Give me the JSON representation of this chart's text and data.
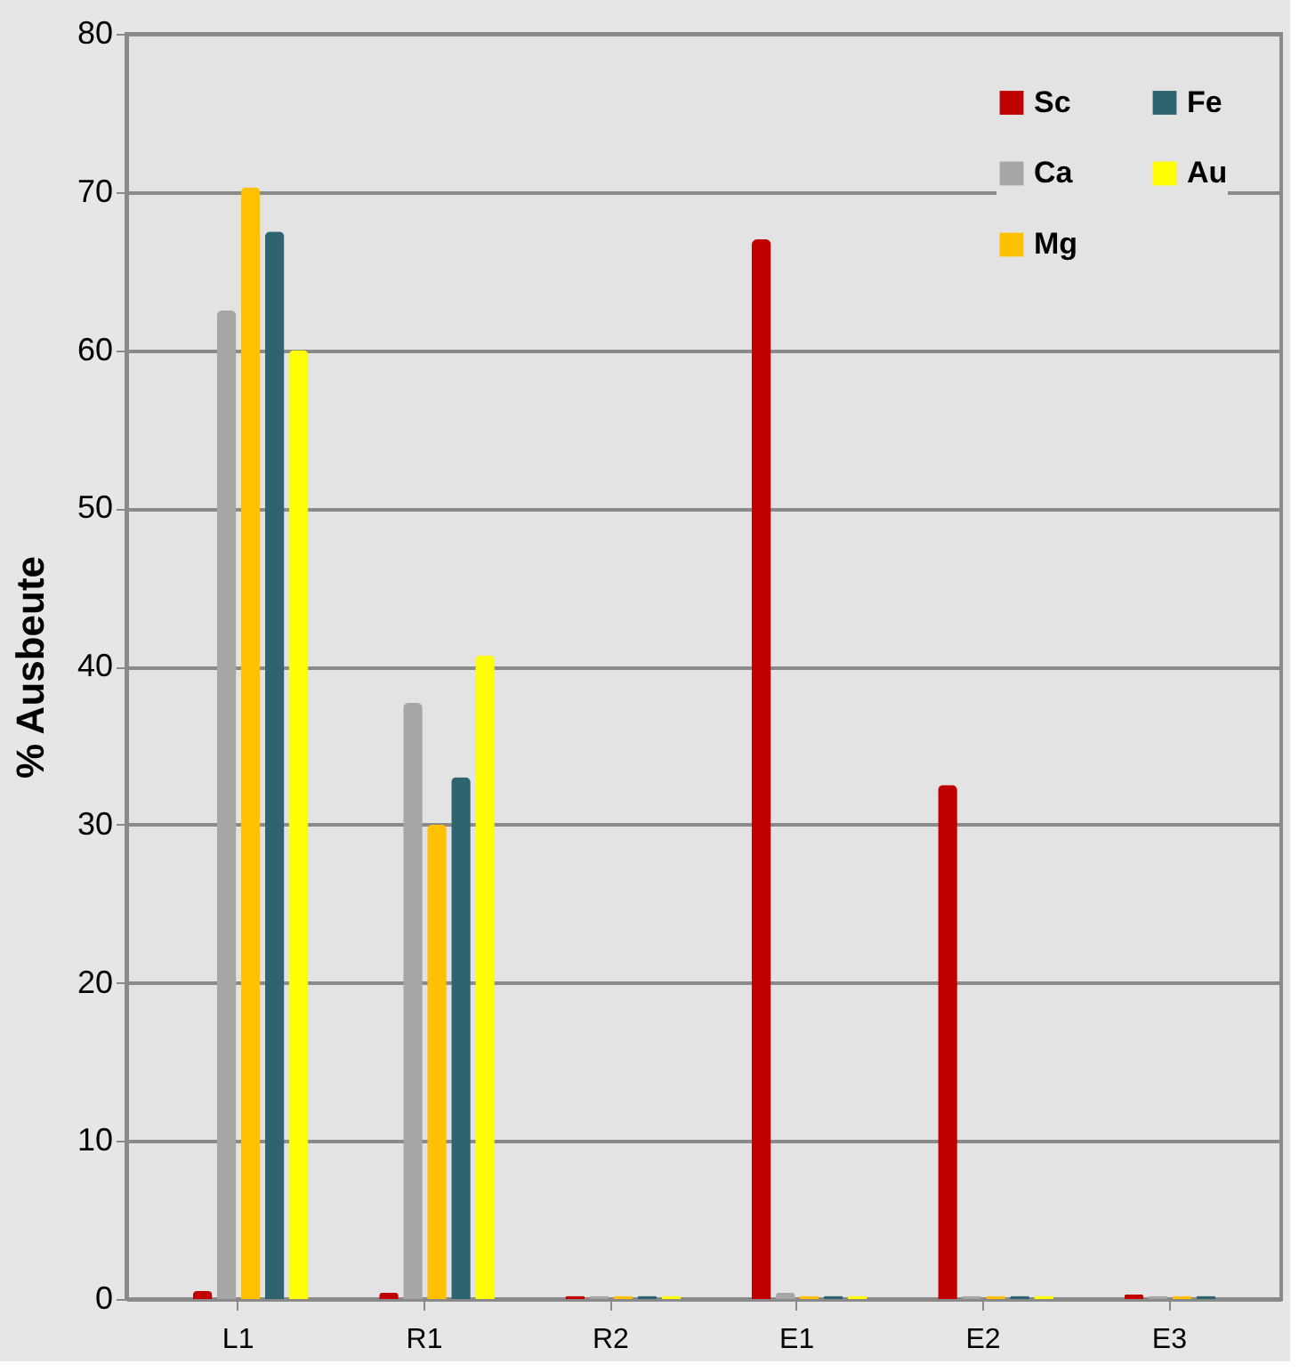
{
  "chart_data": {
    "type": "bar",
    "ylabel": "% Ausbeute",
    "categories": [
      "L1",
      "R1",
      "R2",
      "E1",
      "E2",
      "E3"
    ],
    "series": [
      {
        "name": "Sc",
        "color": "#c00000",
        "values": [
          0.5,
          0.4,
          0.2,
          67,
          32.5,
          0.3
        ]
      },
      {
        "name": "Ca",
        "color": "#a6a6a6",
        "values": [
          62.5,
          37.7,
          0.2,
          0.4,
          0.2,
          0.2
        ]
      },
      {
        "name": "Mg",
        "color": "#ffc000",
        "values": [
          70.3,
          30,
          0.2,
          0.2,
          0.2,
          0.2
        ]
      },
      {
        "name": "Fe",
        "color": "#2e6470",
        "values": [
          67.5,
          33,
          0.2,
          0.2,
          0.2,
          0.2
        ]
      },
      {
        "name": "Au",
        "color": "#ffff00",
        "values": [
          60,
          40.7,
          0.2,
          0.2,
          0.2,
          null
        ]
      }
    ],
    "ylim": [
      0,
      80
    ],
    "yticks": [
      0,
      10,
      20,
      30,
      40,
      50,
      60,
      70,
      80
    ],
    "grid": "y",
    "legend": "top right"
  }
}
